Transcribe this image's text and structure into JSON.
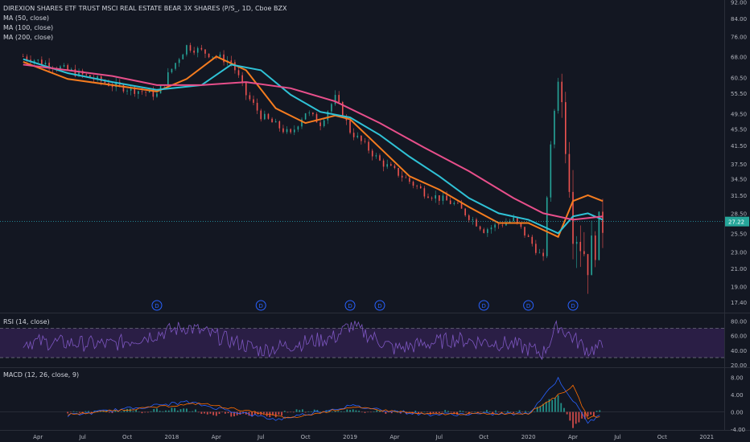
{
  "header": {
    "title": "DIREXION SHARES ETF TRUST MSCI REAL ESTATE BEAR 3X SHARES (P/S_, 1D, Cboe BZX",
    "ma_labels": [
      "MA (50, close)",
      "MA (100, close)",
      "MA (200, close)"
    ]
  },
  "rsi_label": "RSI (14, close)",
  "macd_label": "MACD (12, 26, close, 9)",
  "colors": {
    "background": "#131722",
    "candle_up": "#26a69a",
    "candle_down": "#ef5350",
    "ma50": "#f57c1f",
    "ma100": "#2fc2d6",
    "ma200": "#e84f8b",
    "rsi_line": "#7e57c2",
    "rsi_band": "#2a1e45",
    "macd_line": "#2962ff",
    "signal_line": "#ff6d00"
  },
  "price_badge": "27.22",
  "dividend_marker": "D",
  "chart_data": [
    {
      "type": "line",
      "panel": "price",
      "series_type": "candlestick with moving averages",
      "scale": "log",
      "ylim": [
        16.5,
        93
      ],
      "y_ticks": [
        "92.00",
        "84.00",
        "76.00",
        "68.00",
        "60.50",
        "55.50",
        "49.50",
        "45.50",
        "41.50",
        "37.50",
        "34.50",
        "31.50",
        "28.50",
        "25.50",
        "23.00",
        "21.00",
        "19.00",
        "17.40"
      ],
      "x_ticks": [
        "Apr",
        "Jul",
        "Oct",
        "2018",
        "Apr",
        "Jul",
        "Oct",
        "2019",
        "Apr",
        "Jul",
        "Oct",
        "2020",
        "Apr",
        "Jul",
        "Oct",
        "2021"
      ],
      "close_profile": [
        [
          "2017-03",
          68
        ],
        [
          "2017-06",
          63
        ],
        [
          "2017-09",
          58
        ],
        [
          "2017-12",
          55
        ],
        [
          "2018-02",
          72
        ],
        [
          "2018-03",
          70
        ],
        [
          "2018-05",
          66
        ],
        [
          "2018-06",
          55
        ],
        [
          "2018-07",
          49
        ],
        [
          "2018-09",
          44
        ],
        [
          "2018-10",
          50
        ],
        [
          "2018-11",
          47
        ],
        [
          "2018-12",
          54
        ],
        [
          "2019-01",
          45
        ],
        [
          "2019-03",
          38
        ],
        [
          "2019-06",
          32
        ],
        [
          "2019-08",
          30
        ],
        [
          "2019-10",
          26
        ],
        [
          "2019-12",
          27.5
        ],
        [
          "2020-02",
          22
        ],
        [
          "2020-03",
          60
        ],
        [
          "2020-04",
          27
        ],
        [
          "2020-05",
          22
        ],
        [
          "2020-06",
          27.2
        ]
      ],
      "series": [
        {
          "name": "MA (50, close)",
          "values": [
            [
              "2017-03",
              66
            ],
            [
              "2017-06",
              60
            ],
            [
              "2017-09",
              58
            ],
            [
              "2017-12",
              56
            ],
            [
              "2018-02",
              60
            ],
            [
              "2018-04",
              68
            ],
            [
              "2018-06",
              63
            ],
            [
              "2018-08",
              51
            ],
            [
              "2018-10",
              47
            ],
            [
              "2018-12",
              49
            ],
            [
              "2019-01",
              48
            ],
            [
              "2019-03",
              41
            ],
            [
              "2019-05",
              35
            ],
            [
              "2019-07",
              32.5
            ],
            [
              "2019-09",
              29.5
            ],
            [
              "2019-11",
              27
            ],
            [
              "2020-01",
              27
            ],
            [
              "2020-03",
              25
            ],
            [
              "2020-04",
              30.5
            ],
            [
              "2020-05",
              31.5
            ],
            [
              "2020-06",
              30.5
            ]
          ]
        },
        {
          "name": "MA (100, close)",
          "values": [
            [
              "2017-03",
              67
            ],
            [
              "2017-06",
              62
            ],
            [
              "2017-09",
              59
            ],
            [
              "2017-12",
              56.5
            ],
            [
              "2018-03",
              58
            ],
            [
              "2018-05",
              65
            ],
            [
              "2018-07",
              63
            ],
            [
              "2018-09",
              55
            ],
            [
              "2018-11",
              50
            ],
            [
              "2019-01",
              48.5
            ],
            [
              "2019-03",
              44
            ],
            [
              "2019-05",
              39
            ],
            [
              "2019-07",
              35
            ],
            [
              "2019-09",
              31
            ],
            [
              "2019-11",
              28.5
            ],
            [
              "2020-01",
              27.5
            ],
            [
              "2020-03",
              25.5
            ],
            [
              "2020-04",
              28
            ],
            [
              "2020-05",
              28.5
            ],
            [
              "2020-06",
              27.5
            ]
          ]
        },
        {
          "name": "MA (200, close)",
          "values": [
            [
              "2017-03",
              65
            ],
            [
              "2017-06",
              63
            ],
            [
              "2017-09",
              61
            ],
            [
              "2017-12",
              58
            ],
            [
              "2018-03",
              58
            ],
            [
              "2018-06",
              59
            ],
            [
              "2018-09",
              57
            ],
            [
              "2018-12",
              53
            ],
            [
              "2019-03",
              47
            ],
            [
              "2019-06",
              41
            ],
            [
              "2019-09",
              36
            ],
            [
              "2019-12",
              31
            ],
            [
              "2020-02",
              28.5
            ],
            [
              "2020-04",
              27.5
            ],
            [
              "2020-06",
              28
            ]
          ]
        }
      ],
      "dividends": [
        "2017-12",
        "2018-07",
        "2019-01",
        "2019-03",
        "2019-10",
        "2020-01",
        "2020-04"
      ]
    },
    {
      "type": "line",
      "panel": "rsi",
      "ylim": [
        18,
        88
      ],
      "y_ticks": [
        "80.00",
        "60.00",
        "40.00",
        "20.00"
      ],
      "bands": [
        30,
        70
      ],
      "series": [
        {
          "name": "RSI (14, close)",
          "values": [
            [
              "2017-03",
              52
            ],
            [
              "2017-09",
              48
            ],
            [
              "2018-02",
              72
            ],
            [
              "2018-07",
              40
            ],
            [
              "2018-12",
              58
            ],
            [
              "2019-01",
              74
            ],
            [
              "2019-04",
              42
            ],
            [
              "2019-08",
              55
            ],
            [
              "2019-12",
              48
            ],
            [
              "2020-02",
              36
            ],
            [
              "2020-03",
              74
            ],
            [
              "2020-05",
              40
            ],
            [
              "2020-06",
              45
            ]
          ]
        }
      ]
    },
    {
      "type": "bar",
      "panel": "macd",
      "ylim": [
        -4,
        10
      ],
      "y_ticks": [
        "8.00",
        "4.00",
        "0.00",
        "-4.00"
      ],
      "series": [
        {
          "name": "MACD",
          "values": [
            [
              "2017-06",
              -0.8
            ],
            [
              "2018-02",
              2.3
            ],
            [
              "2018-08",
              -1.8
            ],
            [
              "2019-01",
              1.4
            ],
            [
              "2019-06",
              -0.6
            ],
            [
              "2020-01",
              -0.4
            ],
            [
              "2020-03",
              7.7
            ],
            [
              "2020-05",
              -2.4
            ],
            [
              "2020-06",
              -0.6
            ]
          ]
        },
        {
          "name": "Signal",
          "values": [
            [
              "2017-06",
              -0.6
            ],
            [
              "2018-03",
              2.0
            ],
            [
              "2018-09",
              -1.5
            ],
            [
              "2019-01",
              1.1
            ],
            [
              "2019-06",
              -0.5
            ],
            [
              "2020-01",
              -0.3
            ],
            [
              "2020-04",
              6.0
            ],
            [
              "2020-05",
              -1.4
            ],
            [
              "2020-06",
              -0.8
            ]
          ]
        }
      ]
    }
  ]
}
